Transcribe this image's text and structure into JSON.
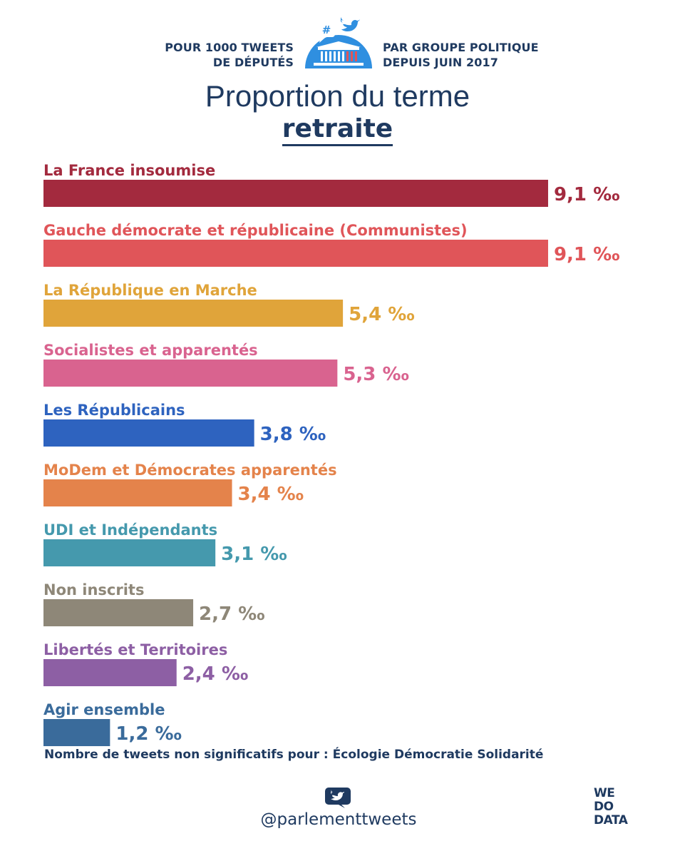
{
  "header": {
    "left_line1": "POUR 1000 TWEETS",
    "left_line2": "DE DÉPUTÉS",
    "right_line1": "PAR GROUPE POLITIQUE",
    "right_line2": "DEPUIS JUIN 2017",
    "logo_hash": "#"
  },
  "chart_data": {
    "type": "bar",
    "orientation": "horizontal",
    "title": "Proportion du terme",
    "term": "retraite",
    "unit": "‰",
    "categories": [
      "La France insoumise",
      "Gauche démocrate et républicaine (Communistes)",
      "La République en Marche",
      "Socialistes et apparentés",
      "Les Républicains",
      "MoDem et Démocrates apparentés",
      "UDI et Indépendants",
      "Non inscrits",
      "Libertés et Territoires",
      "Agir ensemble"
    ],
    "values": [
      9.1,
      9.1,
      5.4,
      5.3,
      3.8,
      3.4,
      3.1,
      2.7,
      2.4,
      1.2
    ],
    "value_labels": [
      "9,1",
      "9,1",
      "5,4",
      "5,3",
      "3,8",
      "3,4",
      "3,1",
      "2,7",
      "2,4",
      "1,2"
    ],
    "colors": [
      "#a32a3e",
      "#e05559",
      "#e0a43a",
      "#d9638f",
      "#2e63bf",
      "#e4834b",
      "#4599ad",
      "#8e8778",
      "#8d5fa4",
      "#3a6b9b"
    ],
    "grid": false,
    "legend": "none"
  },
  "footnote": "Nombre de tweets non significatifs pour : Écologie Démocratie Solidarité",
  "footer": {
    "handle": "@parlementtweets",
    "brand_line1": "WE",
    "brand_line2": "DO",
    "brand_line3": "DATA"
  },
  "icons": {
    "logo": "parliament-speech-bubble-icon",
    "bottom": "twitter-bird-icon"
  },
  "brand_colors": {
    "navy": "#1f3a60",
    "logo_blue": "#2f8fe0",
    "logo_red": "#e05559"
  }
}
